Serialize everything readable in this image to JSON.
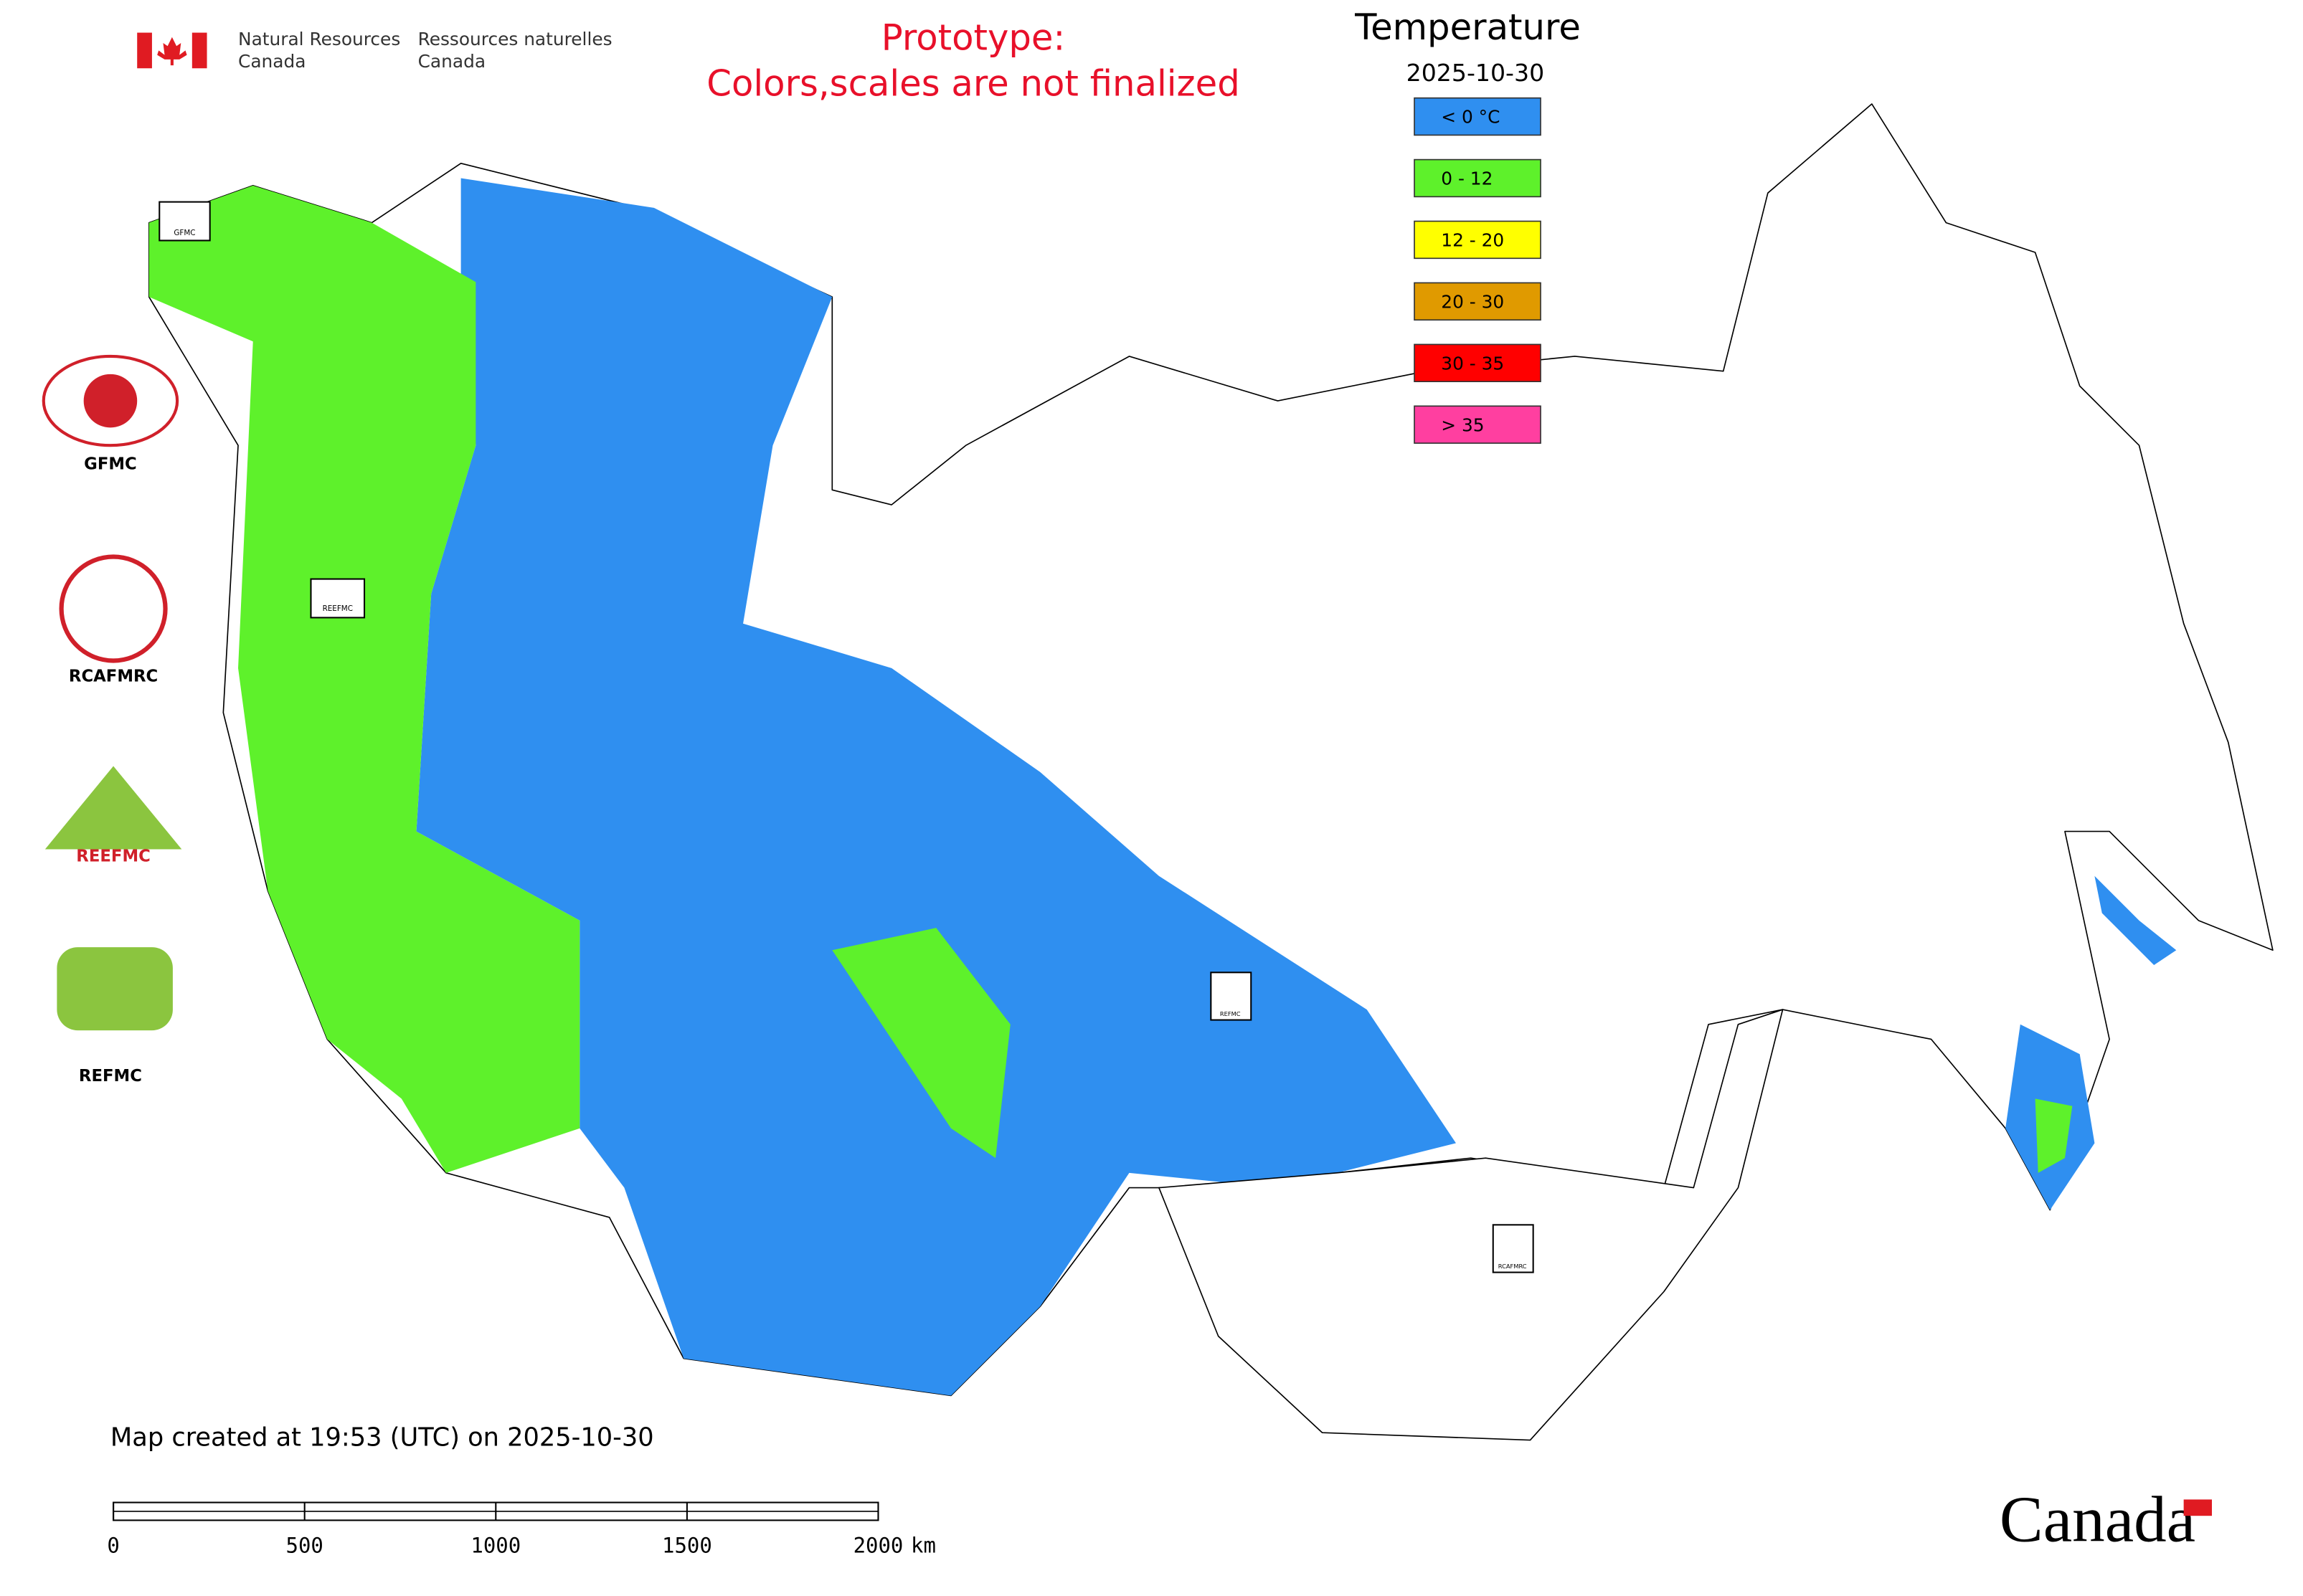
{
  "header": {
    "org_en": [
      "Natural Resources",
      "Canada"
    ],
    "org_fr": [
      "Ressources naturelles",
      "Canada"
    ],
    "notice": [
      "Prototype:",
      "Colors,scales are not finalized"
    ]
  },
  "legend": {
    "title": "Temperature",
    "date": "2025-10-30",
    "items": [
      {
        "label": "< 0 °C",
        "color": "#2f8ff0"
      },
      {
        "label": "0 - 12",
        "color": "#5ef12b"
      },
      {
        "label": "12 - 20",
        "color": "#ffff00"
      },
      {
        "label": "20 - 30",
        "color": "#e09a00"
      },
      {
        "label": "30 - 35",
        "color": "#ff0000"
      },
      {
        "label": "> 35",
        "color": "#ff3fa0"
      }
    ]
  },
  "logos": [
    "GFMC",
    "RCAFMRC",
    "REEFMC",
    "REFMC"
  ],
  "footer": {
    "created": "Map created at 19:53 (UTC) on 2025-10-30",
    "wordmark": "Canada"
  },
  "scale_bar": {
    "ticks": [
      0,
      500,
      1000,
      1500,
      2000
    ],
    "unit": "km"
  }
}
